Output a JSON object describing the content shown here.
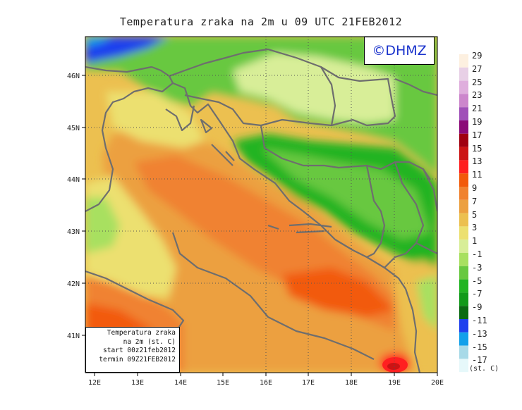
{
  "title": "Temperatura zraka na 2m u 09 UTC 21FEB2012",
  "logo_text": "©DHMZ",
  "infobox": {
    "line1": "Temperatura zraka",
    "line2": "na 2m (st. C)",
    "line3": "start 00z21feb2012",
    "line4": "termin 09Z21FEB2012"
  },
  "axes": {
    "x_ticks": [
      "12E",
      "13E",
      "14E",
      "15E",
      "16E",
      "17E",
      "18E",
      "19E",
      "20E"
    ],
    "y_ticks": [
      "46N",
      "45N",
      "44N",
      "43N",
      "42N",
      "41N"
    ]
  },
  "legend": {
    "unit": "(st. C)",
    "labels": [
      "29",
      "27",
      "25",
      "23",
      "21",
      "19",
      "17",
      "15",
      "13",
      "11",
      "9",
      "7",
      "5",
      "3",
      "1",
      "-1",
      "-3",
      "-5",
      "-7",
      "-9",
      "-11",
      "-13",
      "-15",
      "-17"
    ],
    "colors": [
      "#fdf0e0",
      "#e8d0e6",
      "#dfaedd",
      "#cc86cc",
      "#a050b8",
      "#8b0a78",
      "#a00010",
      "#cc1414",
      "#ff2020",
      "#f25a0a",
      "#f08230",
      "#eca040",
      "#ecc050",
      "#ece070",
      "#d8ee98",
      "#a8e060",
      "#68c840",
      "#22b422",
      "#129a1a",
      "#0a6a12",
      "#1e40ee",
      "#12a0ea",
      "#a8dae8",
      "#e6f8fa"
    ]
  }
}
